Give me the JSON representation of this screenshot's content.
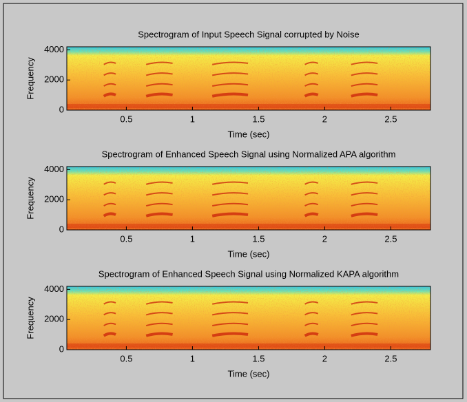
{
  "chart_data": [
    {
      "type": "spectrogram",
      "title": "Spectrogram of Input Speech Signal corrupted by Noise",
      "xlabel": "Time (sec)",
      "ylabel": "Frequency",
      "xlim": [
        0.05,
        2.8
      ],
      "ylim": [
        0,
        4200
      ],
      "xticks": [
        0.5,
        1,
        1.5,
        2,
        2.5
      ],
      "yticks": [
        0,
        2000,
        4000
      ]
    },
    {
      "type": "spectrogram",
      "title": "Spectrogram of Enhanced Speech Signal using Normalized APA algorithm",
      "xlabel": "Time (sec)",
      "ylabel": "Frequency",
      "xlim": [
        0.05,
        2.8
      ],
      "ylim": [
        0,
        4200
      ],
      "xticks": [
        0.5,
        1,
        1.5,
        2,
        2.5
      ],
      "yticks": [
        0,
        2000,
        4000
      ]
    },
    {
      "type": "spectrogram",
      "title": "Spectrogram of Enhanced Speech Signal using Normalized KAPA algorithm",
      "xlabel": "Time (sec)",
      "ylabel": "Frequency",
      "xlim": [
        0.05,
        2.8
      ],
      "ylim": [
        0,
        4200
      ],
      "xticks": [
        0.5,
        1,
        1.5,
        2,
        2.5
      ],
      "yticks": [
        0,
        2000,
        4000
      ]
    }
  ]
}
